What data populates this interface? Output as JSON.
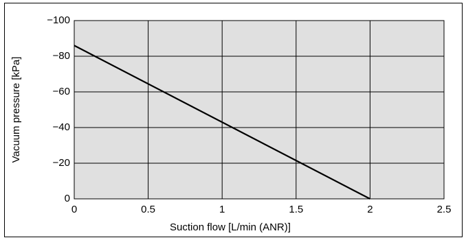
{
  "chart_data": {
    "type": "line",
    "x_label": "Suction flow [L/min (ANR)]",
    "y_label": "Vacuum pressure [kPa]",
    "x": [
      0,
      2
    ],
    "series": [
      {
        "name": null,
        "color": "#000000",
        "values": [
          -86,
          0
        ]
      }
    ],
    "xlim": [
      0,
      2.5
    ],
    "xticks": [
      0,
      0.5,
      1,
      1.5,
      2,
      2.5
    ],
    "ylim": [
      0,
      -100
    ],
    "yticks": [
      0,
      {
        "value": -20,
        "label": "−20"
      },
      {
        "value": -40,
        "label": "−40"
      },
      {
        "value": -60,
        "label": "−60"
      },
      {
        "value": -80,
        "label": "−80"
      },
      {
        "value": -100,
        "label": "−100"
      }
    ],
    "grid": true,
    "background": "#e0e0e0"
  }
}
